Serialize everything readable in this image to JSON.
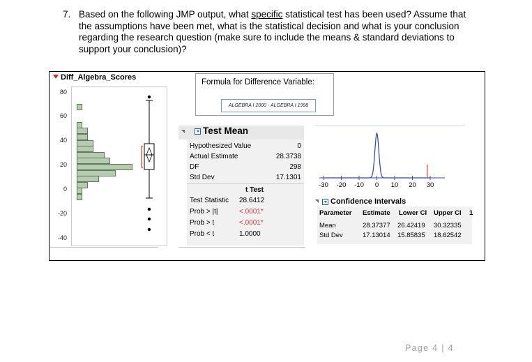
{
  "question": {
    "number": "7.",
    "text_before": "Based on the following JMP output, what ",
    "emphasis": "specific",
    "text_after": " statistical test has been used? Assume that the assumptions have been met, what is the statistical decision and what is your conclusion regarding the research question (make sure to include the means & standard deviations to support your conclusion)?"
  },
  "distribution": {
    "title": "Diff_Algebra_Scores",
    "y_ticks": [
      "80",
      "60",
      "40",
      "20",
      "0",
      "-20",
      "-40"
    ],
    "histogram": [
      {
        "bin": "75 to 80",
        "count": 1
      },
      {
        "bin": "70 to 75",
        "count": 0
      },
      {
        "bin": "65 to 70",
        "count": 0
      },
      {
        "bin": "60 to 65",
        "count": 1
      },
      {
        "bin": "55 to 60",
        "count": 2
      },
      {
        "bin": "50 to 55",
        "count": 2
      },
      {
        "bin": "45 to 50",
        "count": 3
      },
      {
        "bin": "40 to 45",
        "count": 3
      },
      {
        "bin": "35 to 40",
        "count": 5
      },
      {
        "bin": "30 to 35",
        "count": 6
      },
      {
        "bin": "25 to 30",
        "count": 10
      },
      {
        "bin": "20 to 25",
        "count": 7
      },
      {
        "bin": "15 to 20",
        "count": 4
      },
      {
        "bin": "10 to 15",
        "count": 2
      },
      {
        "bin": "5 to 10",
        "count": 1
      },
      {
        "bin": "0 to 5",
        "count": 1
      }
    ],
    "bar_color": "#b6cbb0"
  },
  "formula": {
    "title": "Formula for Difference Variable:",
    "expression": "ALGEBRA I 2000  -  ALGEBRA I 1998"
  },
  "test_mean": {
    "title": "Test Mean",
    "rows": [
      {
        "label": "Hypothesized Value",
        "value": "0"
      },
      {
        "label": "Actual Estimate",
        "value": "28.3738"
      },
      {
        "label": "DF",
        "value": "298"
      },
      {
        "label": "Std Dev",
        "value": "17.1301"
      }
    ],
    "t_header": "t Test",
    "t_rows": [
      {
        "label": "Test Statistic",
        "value": "28.6412",
        "highlight": false
      },
      {
        "label": "Prob > |t|",
        "value": "<.0001*",
        "highlight": true
      },
      {
        "label": "Prob > t",
        "value": "<.0001*",
        "highlight": true
      },
      {
        "label": "Prob < t",
        "value": "1.0000",
        "highlight": false
      }
    ],
    "highlight_color": "#d23b3b"
  },
  "density_plot": {
    "x_ticks": [
      "-30",
      "-20",
      "-10",
      "0",
      "10",
      "20",
      "30"
    ],
    "line_color": "#2b3fcf",
    "estimate_marker_color": "#d23b3b",
    "estimate": 28.3738
  },
  "confidence_intervals": {
    "title": "Confidence Intervals",
    "columns": [
      "Parameter",
      "Estimate",
      "Lower CI",
      "Upper CI",
      "1"
    ],
    "rows": [
      {
        "parameter": "Mean",
        "estimate": "28.37377",
        "lower": "26.42419",
        "upper": "30.32335"
      },
      {
        "parameter": "Std Dev",
        "estimate": "17.13014",
        "lower": "15.85835",
        "upper": "18.62542"
      }
    ]
  },
  "footer": {
    "page_label": "Page 4 | 4"
  }
}
